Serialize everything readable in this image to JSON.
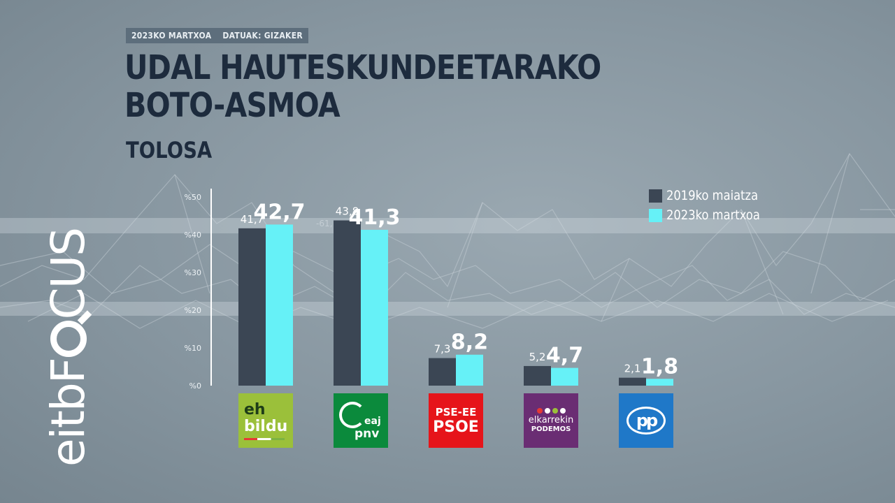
{
  "header": {
    "date_tag": "2023KO MARTXOA",
    "source_tag": "DATUAK: GIZAKER",
    "title_line1": "UDAL HAUTESKUNDEETARAKO",
    "title_line2": "BOTO-ASMOA",
    "subtitle": "TOLOSA"
  },
  "brand": {
    "prefix": "eitbF",
    "suffix": "CUS",
    "lens_icon": "magnifier-icon"
  },
  "colors": {
    "series_2019": "#3b4654",
    "series_2023": "#66f1f7",
    "axis": "#ffffff"
  },
  "chart_data": {
    "type": "bar",
    "categories": [
      "EH Bildu",
      "EAJ-PNV",
      "PSE-EE PSOE",
      "Elkarrekin Podemos",
      "PP"
    ],
    "series": [
      {
        "name": "2019ko maiatza",
        "values": [
          41.7,
          43.8,
          7.3,
          5.2,
          2.1
        ],
        "labels": [
          "41,7",
          "43,8",
          "7,3",
          "5,2",
          "2,1"
        ]
      },
      {
        "name": "2023ko martxoa",
        "values": [
          42.7,
          41.3,
          8.2,
          4.7,
          1.8
        ],
        "labels": [
          "42,7",
          "41,3",
          "8,2",
          "4,7",
          "1,8"
        ]
      }
    ],
    "y_ticks": [
      0,
      10,
      20,
      30,
      40,
      50
    ],
    "y_tick_labels": [
      "%0",
      "%10",
      "%20",
      "%30",
      "%40",
      "%50"
    ],
    "ylim": [
      0,
      50
    ],
    "legend_position": "top-right",
    "grid": false
  },
  "parties": {
    "bildu": {
      "line1": "eh",
      "line2": "bildu"
    },
    "pnv": {
      "line1": "eaj",
      "line2": "pnv"
    },
    "pse": {
      "line1": "PSE-EE",
      "line2": "PSOE"
    },
    "podemos": {
      "line1": "elkarrekin",
      "line2": "PODEMOS"
    },
    "pp": {
      "line1": "pp"
    }
  },
  "background_label": "-61,"
}
